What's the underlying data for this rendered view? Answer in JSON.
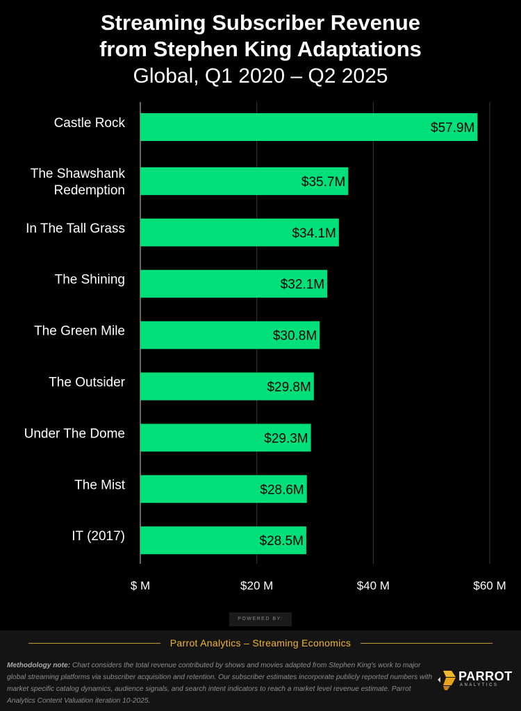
{
  "colors": {
    "background": "#000000",
    "bar": "#00e07a",
    "grid": "#3a3a3a",
    "accent": "#f2b62a"
  },
  "chart_data": {
    "type": "bar",
    "orientation": "horizontal",
    "title_line1": "Streaming Subscriber Revenue",
    "title_line2": "from Stephen King Adaptations",
    "subtitle": "Global, Q1 2020 – Q2 2025",
    "categories": [
      [
        "Castle Rock"
      ],
      [
        "The Shawshank",
        "Redemption"
      ],
      [
        "In The Tall Grass"
      ],
      [
        "The Shining"
      ],
      [
        "The Green Mile"
      ],
      [
        "The Outsider"
      ],
      [
        "Under The Dome"
      ],
      [
        "The Mist"
      ],
      [
        "IT (2017)"
      ]
    ],
    "values": [
      57.9,
      35.7,
      34.1,
      32.1,
      30.8,
      29.8,
      29.3,
      28.6,
      28.5
    ],
    "value_labels": [
      "$57.9M",
      "$35.7M",
      "$34.1M",
      "$32.1M",
      "$30.8M",
      "$29.8M",
      "$29.3M",
      "$28.6M",
      "$28.5M"
    ],
    "xlim": [
      0,
      60
    ],
    "xticks": [
      0,
      20,
      40,
      60
    ],
    "xtick_labels": [
      "$ M",
      "$20 M",
      "$40 M",
      "$60 M"
    ],
    "xlabel": "",
    "ylabel": "",
    "grid": true
  },
  "footer": {
    "powered_by": "POWERED BY:",
    "brand_line": "Parrot Analytics – Streaming Economics",
    "methodology_label": "Methodology note:",
    "methodology_text": " Chart considers the total revenue contributed by shows and movies adapted from Stephen King's work to major global streaming platforms via subscriber acquisition and retention. Our subscriber estimates incorporate publicly reported numbers with market specific catalog dynamics, audience signals, and search intent indicators to reach a market level revenue estimate. Parrot Analytics Content Valuation iteration 10-2025.",
    "logo_word": "PARROT",
    "logo_sub": "ANALYTICS",
    "logo_icon": "parrot-icon"
  }
}
